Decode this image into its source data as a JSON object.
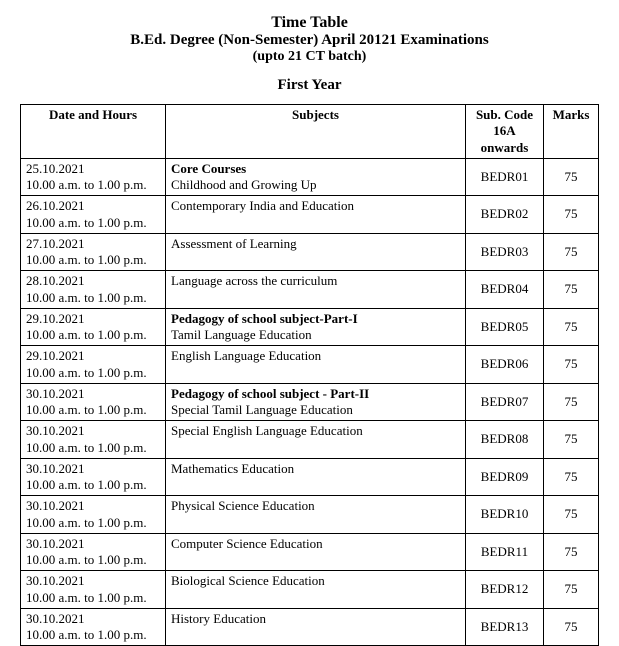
{
  "header": {
    "title": "Time Table",
    "subtitle": "B.Ed. Degree (Non-Semester) April 20121 Examinations",
    "batch": "(upto 21 CT batch)",
    "year": "First Year"
  },
  "table": {
    "columns": {
      "date": "Date and Hours",
      "subjects": "Subjects",
      "code_line1": "Sub. Code",
      "code_line2": "16A",
      "code_line3": "onwards",
      "marks": "Marks"
    },
    "rows": [
      {
        "date": "25.10.2021",
        "time": "10.00 a.m. to 1.00 p.m.",
        "subj_bold": "Core Courses",
        "subj": "Childhood and Growing Up",
        "code": "BEDR01",
        "marks": "75"
      },
      {
        "date": "26.10.2021",
        "time": "10.00 a.m. to 1.00 p.m.",
        "subj_bold": "",
        "subj": "Contemporary India and Education",
        "code": "BEDR02",
        "marks": "75"
      },
      {
        "date": "27.10.2021",
        "time": "10.00 a.m. to 1.00 p.m.",
        "subj_bold": "",
        "subj": "Assessment of Learning",
        "code": "BEDR03",
        "marks": "75"
      },
      {
        "date": "28.10.2021",
        "time": "10.00 a.m. to 1.00 p.m.",
        "subj_bold": "",
        "subj": "Language across the curriculum",
        "code": "BEDR04",
        "marks": "75"
      },
      {
        "date": "29.10.2021",
        "time": "10.00 a.m. to 1.00 p.m.",
        "subj_bold": "Pedagogy of school subject-Part-I",
        "subj": "Tamil Language Education",
        "code": "BEDR05",
        "marks": "75"
      },
      {
        "date": "29.10.2021",
        "time": "10.00 a.m. to 1.00 p.m.",
        "subj_bold": "",
        "subj": "English Language Education",
        "code": "BEDR06",
        "marks": "75"
      },
      {
        "date": "30.10.2021",
        "time": "10.00 a.m. to 1.00 p.m.",
        "subj_bold": "Pedagogy of school subject - Part-II",
        "subj": "Special Tamil Language Education",
        "code": "BEDR07",
        "marks": "75"
      },
      {
        "date": "30.10.2021",
        "time": "10.00 a.m. to 1.00 p.m.",
        "subj_bold": "",
        "subj": "Special English Language Education",
        "code": "BEDR08",
        "marks": "75"
      },
      {
        "date": "30.10.2021",
        "time": "10.00 a.m. to 1.00 p.m.",
        "subj_bold": "",
        "subj": "Mathematics Education",
        "code": "BEDR09",
        "marks": "75"
      },
      {
        "date": "30.10.2021",
        "time": "10.00 a.m. to 1.00 p.m.",
        "subj_bold": "",
        "subj": "Physical Science Education",
        "code": "BEDR10",
        "marks": "75"
      },
      {
        "date": "30.10.2021",
        "time": "10.00 a.m. to 1.00 p.m.",
        "subj_bold": "",
        "subj": "Computer Science Education",
        "code": "BEDR11",
        "marks": "75"
      },
      {
        "date": "30.10.2021",
        "time": "10.00 a.m. to 1.00 p.m.",
        "subj_bold": "",
        "subj": "Biological Science Education",
        "code": "BEDR12",
        "marks": "75"
      },
      {
        "date": "30.10.2021",
        "time": "10.00 a.m. to 1.00 p.m.",
        "subj_bold": "",
        "subj": "History Education",
        "code": "BEDR13",
        "marks": "75"
      }
    ]
  },
  "style": {
    "text_color": "#000000",
    "background_color": "#ffffff",
    "border_color": "#000000",
    "title_fontsize": 16,
    "body_fontsize": 13
  }
}
